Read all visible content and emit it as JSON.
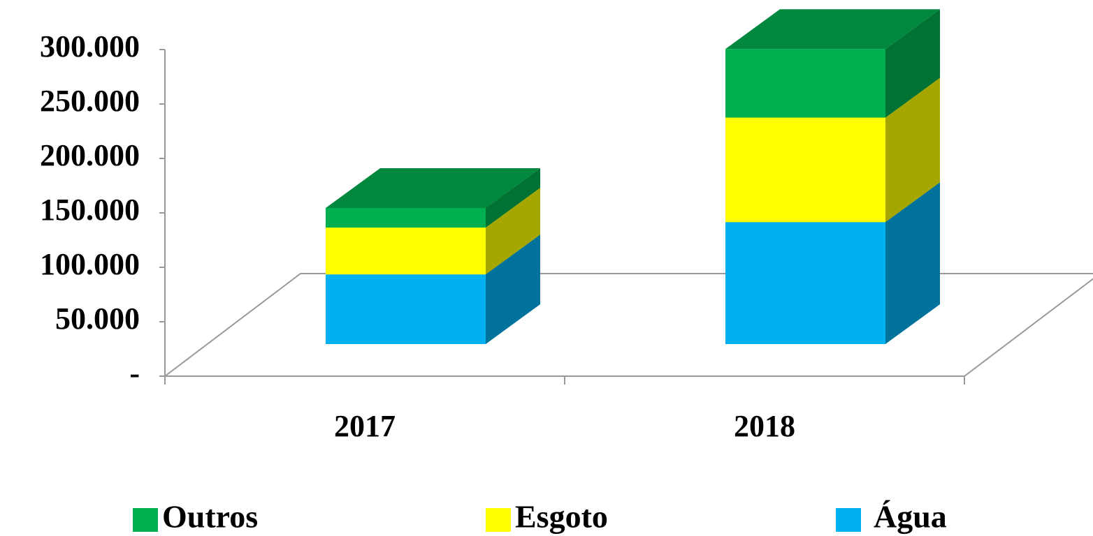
{
  "chart_data": {
    "type": "bar3d-stacked",
    "categories": [
      "2017",
      "2018"
    ],
    "series": [
      {
        "name": "Outros",
        "color": "#00b050",
        "values": [
          18000,
          63000
        ]
      },
      {
        "name": "Esgoto",
        "color": "#ffff00",
        "values": [
          43000,
          96000
        ]
      },
      {
        "name": "Água",
        "color": "#00b0f0",
        "values": [
          64000,
          112000
        ]
      }
    ],
    "ylim": [
      0,
      300000
    ],
    "yticks": [
      {
        "value": 0,
        "label": "-"
      },
      {
        "value": 50000,
        "label": "50.000"
      },
      {
        "value": 100000,
        "label": "100.000"
      },
      {
        "value": 150000,
        "label": "150.000"
      },
      {
        "value": 200000,
        "label": "200.000"
      },
      {
        "value": 250000,
        "label": "250.000"
      },
      {
        "value": 300000,
        "label": "300.000"
      }
    ],
    "legend": "bottom"
  }
}
